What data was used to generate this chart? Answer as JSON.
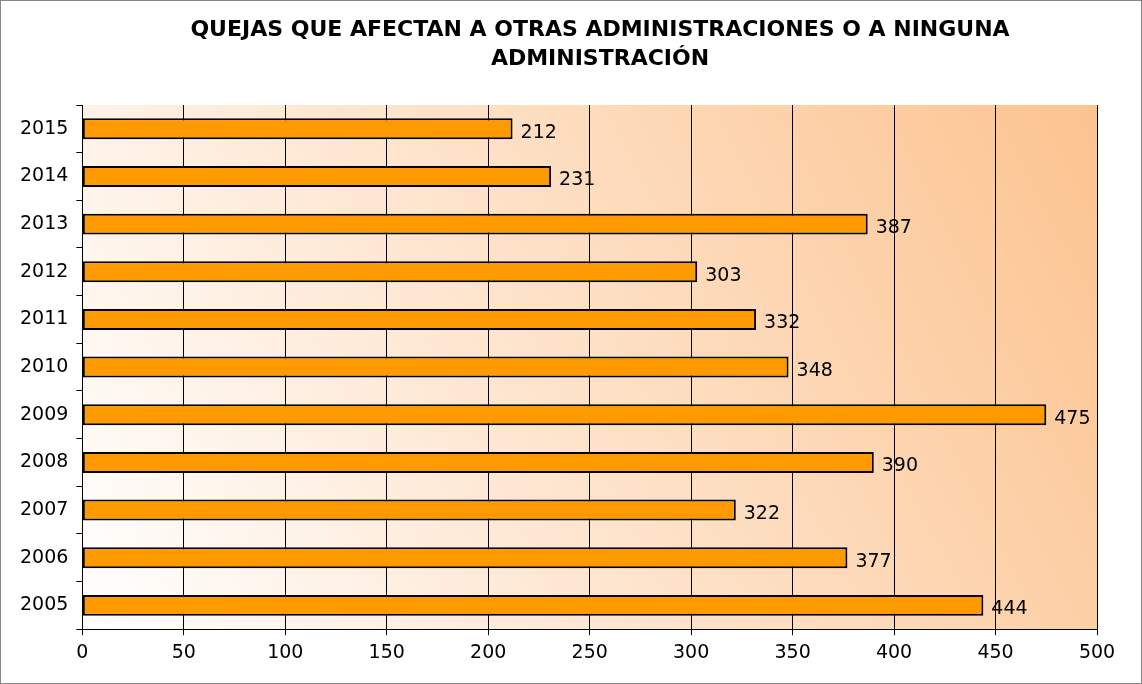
{
  "chart_data": {
    "type": "bar",
    "orientation": "horizontal",
    "title": "QUEJAS QUE AFECTAN A OTRAS ADMINISTRACIONES O A NINGUNA ADMINISTRACIÓN",
    "categories": [
      "2015",
      "2014",
      "2013",
      "2012",
      "2011",
      "2010",
      "2009",
      "2008",
      "2007",
      "2006",
      "2005"
    ],
    "values": [
      212,
      231,
      387,
      303,
      332,
      348,
      475,
      390,
      322,
      377,
      444
    ],
    "color": "#ff9900",
    "xlim": [
      0,
      500
    ],
    "xticks": [
      0,
      50,
      100,
      150,
      200,
      250,
      300,
      350,
      400,
      450,
      500
    ],
    "grid": "x",
    "data_labels": true,
    "legend": false
  }
}
